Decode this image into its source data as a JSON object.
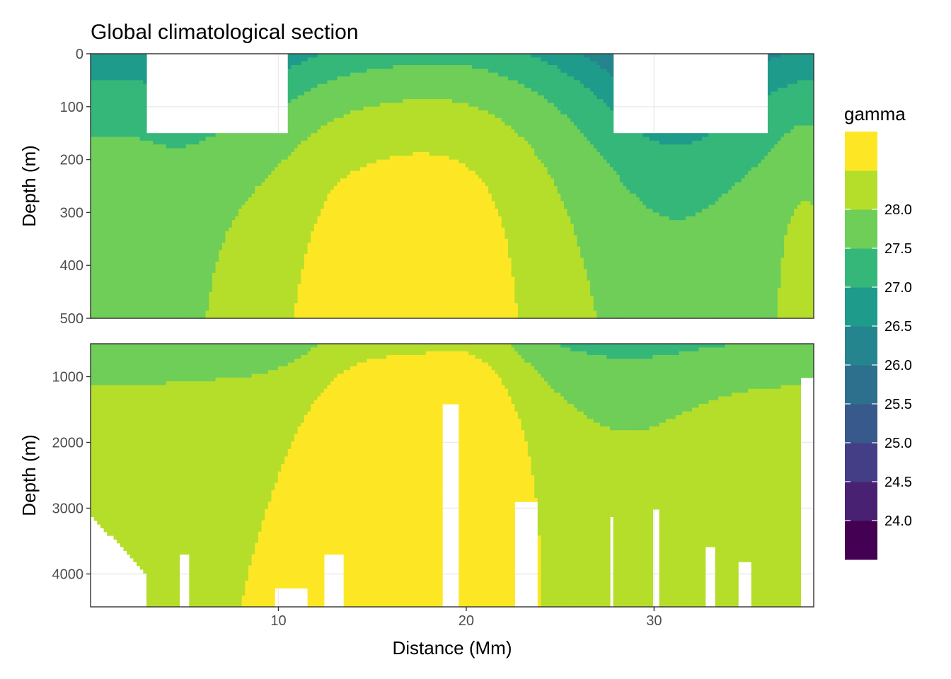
{
  "chart_data": {
    "type": "heatmap",
    "title": "Global climatological section",
    "xlabel": "Distance (Mm)",
    "ylabel": "Depth (m)",
    "xlim": [
      0,
      38.5
    ],
    "x_ticks": [
      10,
      20,
      30
    ],
    "color_scale": "viridis",
    "panels": [
      {
        "name": "upper",
        "ylim": [
          0,
          500
        ],
        "y_ticks": [
          0,
          100,
          200,
          300,
          400,
          500
        ]
      },
      {
        "name": "lower",
        "ylim": [
          500,
          4500
        ],
        "y_ticks": [
          1000,
          2000,
          3000,
          4000
        ]
      }
    ],
    "legend": {
      "title": "gamma",
      "position": "right",
      "bins": [
        {
          "from": 23.5,
          "to": 24.0,
          "color": "#440154"
        },
        {
          "from": 24.0,
          "to": 24.5,
          "color": "#482173"
        },
        {
          "from": 24.5,
          "to": 25.0,
          "color": "#433e85"
        },
        {
          "from": 25.0,
          "to": 25.5,
          "color": "#38598c"
        },
        {
          "from": 25.5,
          "to": 26.0,
          "color": "#2d708e"
        },
        {
          "from": 26.0,
          "to": 26.5,
          "color": "#25858e"
        },
        {
          "from": 26.5,
          "to": 27.0,
          "color": "#1e9b8a"
        },
        {
          "from": 27.0,
          "to": 27.5,
          "color": "#35b779"
        },
        {
          "from": 27.5,
          "to": 28.0,
          "color": "#6ece58"
        },
        {
          "from": 28.0,
          "to": 28.5,
          "color": "#b5de2b"
        },
        {
          "from": 28.5,
          "to": 29.0,
          "color": "#fde725"
        }
      ],
      "labels": [
        "24.0",
        "24.5",
        "25.0",
        "25.5",
        "26.0",
        "26.5",
        "27.0",
        "27.5",
        "28.0"
      ]
    }
  }
}
